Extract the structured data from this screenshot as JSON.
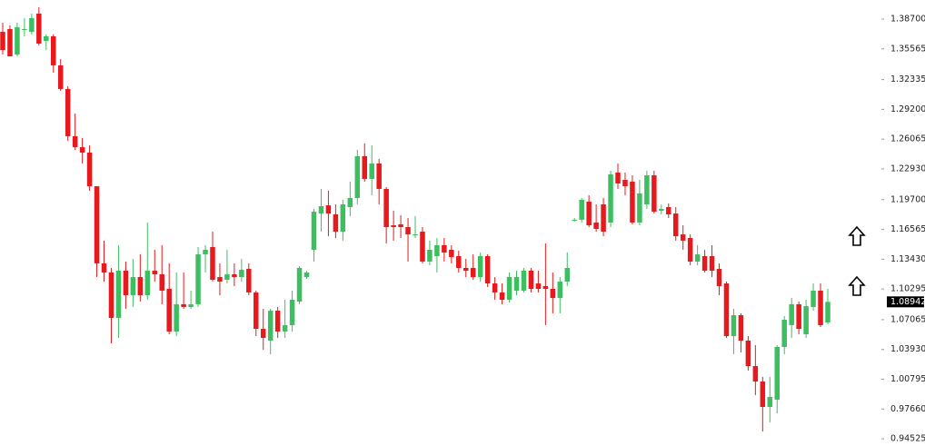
{
  "chart_data": {
    "type": "candlestick",
    "open": [
      1.3736,
      1.3765,
      1.3497,
      1.3756,
      1.3736,
      1.3928,
      1.3641,
      1.3689,
      1.3383,
      1.3134,
      1.2637,
      1.2522,
      1.2465,
      1.2111,
      1.1299,
      1.1203,
      1.0725,
      1.1222,
      1.0964,
      1.1155,
      1.0964,
      1.1222,
      1.1184,
      1.1031,
      1.0582,
      1.0869,
      1.084,
      1.0869,
      1.1394,
      1.1471,
      1.1155,
      1.1127,
      1.1184,
      1.1155,
      1.1241,
      1.0993,
      1.061,
      1.0486,
      1.0801,
      1.0582,
      1.0649,
      1.0897,
      1.1155,
      1.1442,
      1.1824,
      1.191,
      1.1815,
      1.1633,
      1.1891,
      1.1987,
      1.2427,
      1.2188,
      1.235,
      1.2083,
      1.17,
      1.171,
      1.1681,
      1.1604,
      1.1633,
      1.1318,
      1.1375,
      1.149,
      1.1442,
      1.1375,
      1.1251,
      1.1251,
      1.1155,
      1.1375,
      1.1088,
      1.0993,
      1.0916,
      1.1012,
      1.1012,
      1.1222,
      1.1088,
      1.106,
      1.1031,
      1.0935,
      1.1107,
      1.1758,
      1.1758,
      1.1949,
      1.1729,
      1.192,
      1.1729,
      1.2255,
      1.2178,
      1.2159,
      1.1729,
      1.192,
      1.2226,
      1.1853,
      1.1891,
      1.1824,
      1.1604,
      1.1566,
      1.1318,
      1.1375,
      1.1375,
      1.1241,
      1.1088,
      1.0534,
      1.0754,
      1.0486,
      1.0218,
      1.0056,
      0.9788,
      0.9865,
      1.0419,
      1.0649,
      1.0869,
      1.0553,
      1.084,
      1.1012,
      1.0677
    ],
    "high": [
      1.3832,
      1.3803,
      1.3832,
      1.388,
      1.3928,
      1.3995,
      1.3708,
      1.3708,
      1.345,
      1.3163,
      1.2876,
      1.2618,
      1.2541,
      1.2111,
      1.1538,
      1.1251,
      1.149,
      1.1318,
      1.1346,
      1.1394,
      1.1729,
      1.1442,
      1.149,
      1.1299,
      1.1203,
      1.1203,
      1.1012,
      1.1471,
      1.149,
      1.1633,
      1.1299,
      1.1442,
      1.1299,
      1.1346,
      1.1299,
      1.1012,
      1.0821,
      1.0821,
      1.084,
      1.0916,
      1.1012,
      1.127,
      1.1222,
      1.1872,
      1.2083,
      1.2063,
      1.192,
      1.1968,
      1.2159,
      1.2494,
      1.2561,
      1.2541,
      1.2398,
      1.2102,
      1.1853,
      1.1805,
      1.1777,
      1.1796,
      1.1681,
      1.1538,
      1.1566,
      1.1566,
      1.149,
      1.1432,
      1.1346,
      1.1394,
      1.1413,
      1.1394,
      1.1155,
      1.1088,
      1.1203,
      1.1222,
      1.1251,
      1.1251,
      1.1222,
      1.1509,
      1.1203,
      1.1155,
      1.1413,
      1.1777,
      1.1987,
      1.2016,
      1.192,
      1.1987,
      1.2274,
      1.235,
      1.2255,
      1.2226,
      1.2178,
      1.2274,
      1.2274,
      1.192,
      1.193,
      1.1891,
      1.17,
      1.1604,
      1.149,
      1.1442,
      1.149,
      1.1299,
      1.1107,
      1.0821,
      1.0773,
      1.0534,
      1.0438,
      1.0104,
      1.0104,
      1.0438,
      1.0744,
      1.0935,
      1.0897,
      1.0916,
      1.1088,
      1.1088,
      1.1031
    ],
    "low": [
      1.3497,
      1.3478,
      1.3478,
      1.3689,
      1.3708,
      1.3593,
      1.3545,
      1.3306,
      1.3115,
      1.2589,
      1.2494,
      1.235,
      1.2063,
      1.1155,
      1.1107,
      1.0457,
      1.0515,
      1.0821,
      1.084,
      1.0897,
      1.0916,
      1.1107,
      1.0869,
      1.0553,
      1.0534,
      1.0821,
      1.0821,
      1.084,
      1.1203,
      1.1107,
      1.0964,
      1.1088,
      1.106,
      1.1107,
      1.0964,
      1.0534,
      1.039,
      1.0343,
      1.0515,
      1.0515,
      1.0582,
      1.0869,
      1.1136,
      1.1318,
      1.1633,
      1.1585,
      1.1566,
      1.1538,
      1.1796,
      1.192,
      1.2159,
      1.2016,
      1.192,
      1.1509,
      1.1538,
      1.1566,
      1.1318,
      1.1566,
      1.1299,
      1.128,
      1.1203,
      1.1318,
      1.1299,
      1.1203,
      1.1155,
      1.1127,
      1.1107,
      1.105,
      1.0916,
      1.0869,
      1.0888,
      1.0964,
      1.0993,
      1.0993,
      1.0993,
      1.0649,
      1.0773,
      1.0773,
      1.106,
      1.1738,
      1.1729,
      1.1681,
      1.1633,
      1.1585,
      1.1681,
      1.2083,
      1.2016,
      1.171,
      1.17,
      1.1872,
      1.1824,
      1.1815,
      1.1777,
      1.1538,
      1.1442,
      1.128,
      1.128,
      1.1203,
      1.1155,
      1.0964,
      1.0515,
      1.0343,
      1.0362,
      1.0171,
      0.9913,
      0.953,
      0.9626,
      0.9721,
      1.0343,
      1.0515,
      1.0553,
      1.0515,
      1.0801,
      1.0629,
      1.0658
    ],
    "close": [
      1.3545,
      1.3478,
      1.3784,
      1.3765,
      1.388,
      1.3612,
      1.3689,
      1.3383,
      1.3134,
      1.2637,
      1.2522,
      1.2465,
      1.2111,
      1.1299,
      1.1203,
      1.0725,
      1.1222,
      1.0964,
      1.1155,
      1.0964,
      1.1222,
      1.1184,
      1.1012,
      1.0582,
      1.0869,
      1.084,
      1.0869,
      1.1394,
      1.1442,
      1.1127,
      1.1107,
      1.1184,
      1.1155,
      1.1232,
      1.0993,
      1.061,
      1.0515,
      1.0801,
      1.0582,
      1.0649,
      1.0916,
      1.1251,
      1.1203,
      1.1843,
      1.1901,
      1.1824,
      1.1633,
      1.192,
      1.1987,
      1.2427,
      1.2188,
      1.235,
      1.2083,
      1.1681,
      1.1681,
      1.1681,
      1.1604,
      1.1604,
      1.1318,
      1.1442,
      1.149,
      1.1413,
      1.1366,
      1.1251,
      1.1222,
      1.1155,
      1.1375,
      1.1088,
      1.0993,
      1.0916,
      1.1155,
      1.1155,
      1.1222,
      1.1031,
      1.1031,
      1.1031,
      1.0935,
      1.1107,
      1.1251,
      1.1758,
      1.1968,
      1.17,
      1.1662,
      1.1633,
      1.2236,
      1.214,
      1.2111,
      1.1729,
      1.2035,
      1.2226,
      1.1843,
      1.1872,
      1.1815,
      1.1585,
      1.1538,
      1.1318,
      1.1394,
      1.1222,
      1.1222,
      1.106,
      1.0534,
      1.0754,
      1.0486,
      1.0218,
      1.0056,
      0.9788,
      0.9893,
      1.0419,
      1.0706,
      1.0869,
      1.061,
      1.0849,
      1.1012,
      1.0649,
      1.0894
    ],
    "up_color": "#3dbf61",
    "down_color": "#e8191c",
    "ylim": [
      0.9377,
      1.4071
    ],
    "yticks": [
      {
        "value": 1.387,
        "label": "1.38700"
      },
      1.35565,
      1.32335,
      {
        "value": 1.292,
        "label": "1.29200"
      },
      1.26065,
      {
        "value": 1.2293,
        "label": "1.22930"
      },
      {
        "value": 1.197,
        "label": "1.19700"
      },
      1.16565,
      {
        "value": 1.1343,
        "label": "1.13430"
      },
      1.10295,
      1.07065,
      {
        "value": 1.0393,
        "label": "1.03930"
      },
      1.00795,
      {
        "value": 0.9766,
        "label": "0.97660"
      },
      0.94525
    ],
    "last_price": 1.08942
  }
}
